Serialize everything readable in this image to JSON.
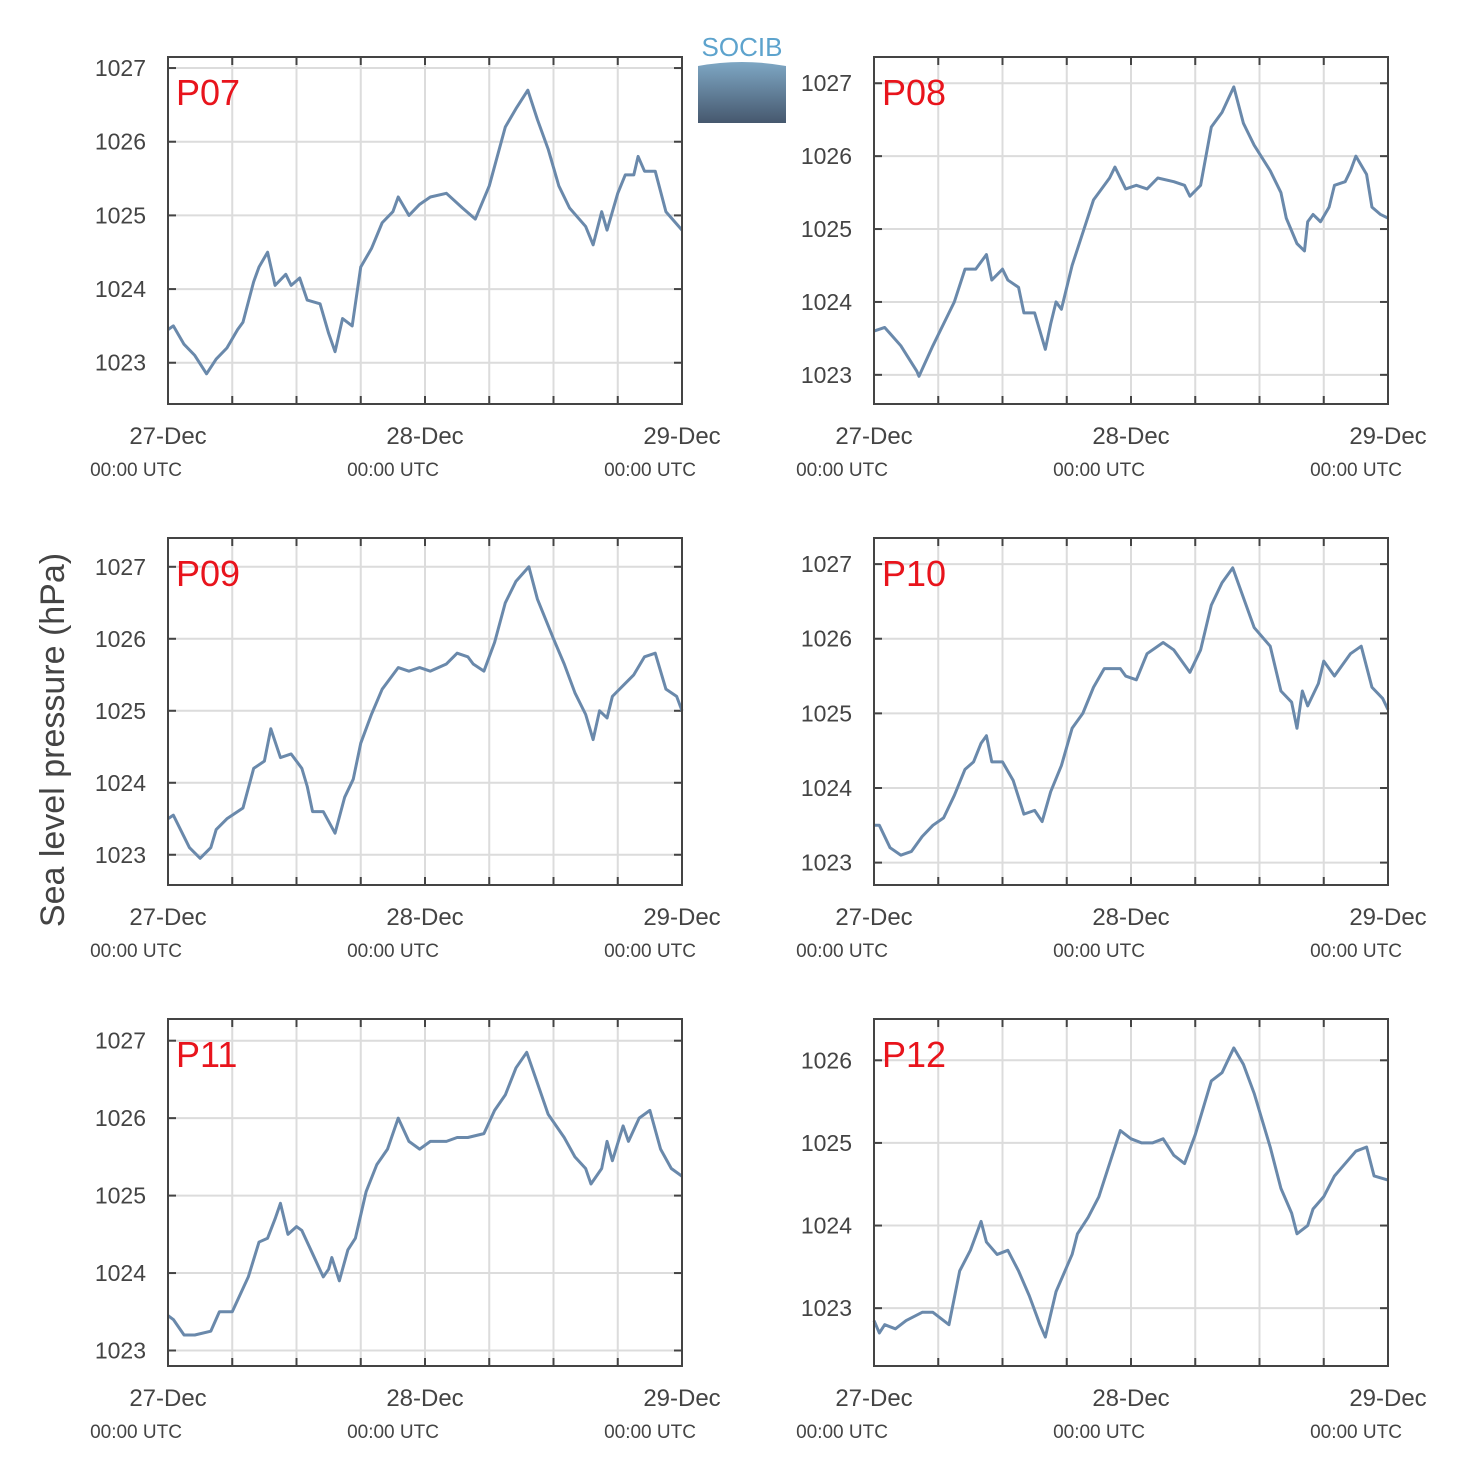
{
  "ylabel": "Sea level pressure (hPa)",
  "logo_text": "SOCIB",
  "chart_data": [
    {
      "type": "line",
      "title": "P07",
      "color": "#6a89ab",
      "grid": true,
      "xlim": [
        0,
        48
      ],
      "ylim": [
        1022.44,
        1027.15
      ],
      "yticks": [
        1023,
        1024,
        1025,
        1026,
        1027
      ],
      "xticks": [
        {
          "value": 0,
          "label": [
            "27-Dec",
            "00:00 UTC"
          ]
        },
        {
          "value": 24,
          "label": [
            "28-Dec",
            "00:00 UTC"
          ]
        },
        {
          "value": 48,
          "label": [
            "29-Dec",
            "00:00 UTC"
          ]
        }
      ],
      "xminor": [
        6,
        12,
        18,
        30,
        36,
        42
      ],
      "x": [
        0,
        0.5,
        1.5,
        2.5,
        3.6,
        4.5,
        5.5,
        6.5,
        7,
        8,
        8.5,
        9.3,
        10,
        11,
        11.5,
        12.3,
        13,
        14.2,
        15,
        15.6,
        16.3,
        17.2,
        18,
        19,
        20,
        21,
        21.5,
        22.5,
        23.5,
        24.5,
        26,
        27.5,
        28.7,
        30,
        31.5,
        32.5,
        33.6,
        34.5,
        35.5,
        36.5,
        37.5,
        39,
        39.7,
        40.5,
        41,
        42,
        42.7,
        43.5,
        43.9,
        44.5,
        45.5,
        46.5,
        48
      ],
      "values": [
        1023.45,
        1023.5,
        1023.25,
        1023.1,
        1022.85,
        1023.05,
        1023.2,
        1023.45,
        1023.55,
        1024.1,
        1024.3,
        1024.5,
        1024.05,
        1024.2,
        1024.05,
        1024.15,
        1023.85,
        1023.8,
        1023.4,
        1023.15,
        1023.6,
        1023.5,
        1024.3,
        1024.55,
        1024.9,
        1025.05,
        1025.25,
        1025.0,
        1025.15,
        1025.25,
        1025.3,
        1025.1,
        1024.95,
        1025.4,
        1026.2,
        1026.45,
        1026.7,
        1026.3,
        1025.9,
        1025.4,
        1025.1,
        1024.85,
        1024.6,
        1025.05,
        1024.8,
        1025.3,
        1025.55,
        1025.55,
        1025.8,
        1025.6,
        1025.6,
        1025.05,
        1024.8
      ]
    },
    {
      "type": "line",
      "title": "P08",
      "color": "#6a89ab",
      "grid": true,
      "xlim": [
        0,
        48
      ],
      "ylim": [
        1022.6,
        1027.36
      ],
      "yticks": [
        1023,
        1024,
        1025,
        1026,
        1027
      ],
      "xticks": [
        {
          "value": 0,
          "label": [
            "27-Dec",
            "00:00 UTC"
          ]
        },
        {
          "value": 24,
          "label": [
            "28-Dec",
            "00:00 UTC"
          ]
        },
        {
          "value": 48,
          "label": [
            "29-Dec",
            "00:00 UTC"
          ]
        }
      ],
      "xminor": [
        6,
        12,
        18,
        30,
        36,
        42
      ],
      "x": [
        0,
        1,
        2.5,
        4,
        4.2,
        5.5,
        7,
        7.5,
        8.5,
        9.5,
        10.5,
        11,
        12,
        12.5,
        13.5,
        14,
        15,
        16,
        16.5,
        17,
        17.5,
        18.5,
        19.5,
        20.5,
        21,
        22,
        22.5,
        23.5,
        24.5,
        25.5,
        26.5,
        28,
        29,
        29.5,
        30.5,
        31.5,
        32.5,
        33.6,
        34.5,
        35.5,
        37,
        38,
        38.5,
        39.5,
        40.2,
        40.5,
        41,
        41.7,
        42.5,
        43,
        44,
        44.5,
        45,
        46,
        46.5,
        47.3,
        48
      ],
      "values": [
        1023.6,
        1023.65,
        1023.4,
        1023.05,
        1022.98,
        1023.4,
        1023.85,
        1024.0,
        1024.45,
        1024.45,
        1024.65,
        1024.3,
        1024.45,
        1024.3,
        1024.2,
        1023.85,
        1023.85,
        1023.35,
        1023.7,
        1024.0,
        1023.9,
        1024.5,
        1024.95,
        1025.4,
        1025.5,
        1025.7,
        1025.85,
        1025.55,
        1025.6,
        1025.55,
        1025.7,
        1025.65,
        1025.6,
        1025.45,
        1025.6,
        1026.4,
        1026.6,
        1026.95,
        1026.45,
        1026.15,
        1025.8,
        1025.5,
        1025.15,
        1024.8,
        1024.7,
        1025.1,
        1025.2,
        1025.1,
        1025.3,
        1025.6,
        1025.65,
        1025.8,
        1026.0,
        1025.75,
        1025.3,
        1025.2,
        1025.15
      ]
    },
    {
      "type": "line",
      "title": "P09",
      "color": "#6a89ab",
      "grid": true,
      "xlim": [
        0,
        48
      ],
      "ylim": [
        1022.58,
        1027.4
      ],
      "yticks": [
        1023,
        1024,
        1025,
        1026,
        1027
      ],
      "xticks": [
        {
          "value": 0,
          "label": [
            "27-Dec",
            "00:00 UTC"
          ]
        },
        {
          "value": 24,
          "label": [
            "28-Dec",
            "00:00 UTC"
          ]
        },
        {
          "value": 48,
          "label": [
            "29-Dec",
            "00:00 UTC"
          ]
        }
      ],
      "xminor": [
        6,
        12,
        18,
        30,
        36,
        42
      ],
      "x": [
        0,
        0.5,
        2,
        3,
        4,
        4.5,
        5.5,
        7,
        8,
        9,
        9.6,
        10.5,
        11.5,
        12.5,
        13,
        13.5,
        14.5,
        15.6,
        16.5,
        17.3,
        18,
        19,
        20,
        21.5,
        22.5,
        23.5,
        24.5,
        26,
        27,
        28,
        28.5,
        29.5,
        30.5,
        31.5,
        32.5,
        33.7,
        34.5,
        36,
        37,
        38,
        39,
        39.7,
        40.3,
        41,
        41.5,
        42.5,
        43.5,
        44.5,
        45.5,
        46.5,
        47.5,
        48
      ],
      "values": [
        1023.5,
        1023.55,
        1023.1,
        1022.95,
        1023.1,
        1023.35,
        1023.5,
        1023.65,
        1024.2,
        1024.3,
        1024.75,
        1024.35,
        1024.4,
        1024.2,
        1023.95,
        1023.6,
        1023.6,
        1023.3,
        1023.8,
        1024.05,
        1024.55,
        1024.95,
        1025.3,
        1025.6,
        1025.55,
        1025.6,
        1025.55,
        1025.65,
        1025.8,
        1025.75,
        1025.65,
        1025.55,
        1025.95,
        1026.5,
        1026.8,
        1027.0,
        1026.55,
        1026.0,
        1025.65,
        1025.25,
        1024.95,
        1024.6,
        1025.0,
        1024.9,
        1025.2,
        1025.35,
        1025.5,
        1025.75,
        1025.8,
        1025.3,
        1025.2,
        1025.0
      ]
    },
    {
      "type": "line",
      "title": "P10",
      "color": "#6a89ab",
      "grid": true,
      "xlim": [
        0,
        48
      ],
      "ylim": [
        1022.7,
        1027.35
      ],
      "yticks": [
        1023,
        1024,
        1025,
        1026,
        1027
      ],
      "xticks": [
        {
          "value": 0,
          "label": [
            "27-Dec",
            "00:00 UTC"
          ]
        },
        {
          "value": 24,
          "label": [
            "28-Dec",
            "00:00 UTC"
          ]
        },
        {
          "value": 48,
          "label": [
            "29-Dec",
            "00:00 UTC"
          ]
        }
      ],
      "xminor": [
        6,
        12,
        18,
        30,
        36,
        42
      ],
      "x": [
        0,
        0.5,
        1.5,
        2.5,
        3.5,
        4.5,
        5.5,
        6.5,
        7.5,
        8.5,
        9.3,
        10,
        10.5,
        11,
        12,
        13,
        14,
        15,
        15.7,
        16.5,
        17.5,
        18.5,
        19.5,
        20.5,
        21.5,
        23,
        23.5,
        24.5,
        25.5,
        27,
        28,
        29.5,
        30.5,
        31.5,
        32.5,
        33.5,
        34.5,
        35.5,
        37,
        38,
        39,
        39.5,
        40,
        40.5,
        41.5,
        42,
        43,
        44.5,
        45.5,
        46.5,
        47.5,
        48
      ],
      "values": [
        1023.5,
        1023.5,
        1023.2,
        1023.1,
        1023.15,
        1023.35,
        1023.5,
        1023.6,
        1023.9,
        1024.25,
        1024.35,
        1024.6,
        1024.7,
        1024.35,
        1024.35,
        1024.1,
        1023.65,
        1023.7,
        1023.55,
        1023.95,
        1024.3,
        1024.8,
        1025.0,
        1025.35,
        1025.6,
        1025.6,
        1025.5,
        1025.45,
        1025.8,
        1025.95,
        1025.85,
        1025.55,
        1025.85,
        1026.45,
        1026.75,
        1026.95,
        1026.55,
        1026.15,
        1025.9,
        1025.3,
        1025.15,
        1024.8,
        1025.3,
        1025.1,
        1025.4,
        1025.7,
        1025.5,
        1025.8,
        1025.9,
        1025.35,
        1025.2,
        1025.05
      ]
    },
    {
      "type": "line",
      "title": "P11",
      "color": "#6a89ab",
      "grid": true,
      "xlim": [
        0,
        48
      ],
      "ylim": [
        1022.8,
        1027.28
      ],
      "yticks": [
        1023,
        1024,
        1025,
        1026,
        1027
      ],
      "xticks": [
        {
          "value": 0,
          "label": [
            "27-Dec",
            "00:00 UTC"
          ]
        },
        {
          "value": 24,
          "label": [
            "28-Dec",
            "00:00 UTC"
          ]
        },
        {
          "value": 48,
          "label": [
            "29-Dec",
            "00:00 UTC"
          ]
        }
      ],
      "xminor": [
        6,
        12,
        18,
        30,
        36,
        42
      ],
      "x": [
        0,
        0.5,
        1.5,
        2.5,
        4,
        4.8,
        5.5,
        6,
        7.5,
        8.5,
        9.3,
        10,
        10.5,
        11.2,
        12,
        12.5,
        13.5,
        14.5,
        15,
        15.3,
        16,
        16.8,
        17.5,
        18.5,
        19.5,
        20.5,
        21.5,
        22.5,
        23.5,
        24.5,
        26,
        27,
        28,
        29.5,
        30.5,
        31.5,
        32.5,
        33.5,
        34.5,
        35.5,
        37,
        38,
        39,
        39.5,
        40.5,
        41,
        41.5,
        42.5,
        43,
        44,
        45,
        46,
        47,
        48
      ],
      "values": [
        1023.45,
        1023.4,
        1023.2,
        1023.2,
        1023.25,
        1023.5,
        1023.5,
        1023.5,
        1023.95,
        1024.4,
        1024.45,
        1024.7,
        1024.9,
        1024.5,
        1024.6,
        1024.55,
        1024.25,
        1023.95,
        1024.05,
        1024.2,
        1023.9,
        1024.3,
        1024.45,
        1025.05,
        1025.4,
        1025.6,
        1026.0,
        1025.7,
        1025.6,
        1025.7,
        1025.7,
        1025.75,
        1025.75,
        1025.8,
        1026.1,
        1026.3,
        1026.65,
        1026.85,
        1026.45,
        1026.05,
        1025.75,
        1025.5,
        1025.35,
        1025.15,
        1025.35,
        1025.7,
        1025.45,
        1025.9,
        1025.7,
        1026.0,
        1026.1,
        1025.6,
        1025.35,
        1025.25
      ]
    },
    {
      "type": "line",
      "title": "P12",
      "color": "#6a89ab",
      "grid": true,
      "xlim": [
        0,
        48
      ],
      "ylim": [
        1022.3,
        1026.5
      ],
      "yticks": [
        1023,
        1024,
        1025,
        1026
      ],
      "xticks": [
        {
          "value": 0,
          "label": [
            "27-Dec",
            "00:00 UTC"
          ]
        },
        {
          "value": 24,
          "label": [
            "28-Dec",
            "00:00 UTC"
          ]
        },
        {
          "value": 48,
          "label": [
            "29-Dec",
            "00:00 UTC"
          ]
        }
      ],
      "xminor": [
        6,
        12,
        18,
        30,
        36,
        42
      ],
      "x": [
        0,
        0.5,
        1,
        2,
        3,
        4.5,
        5.5,
        6.5,
        7,
        8,
        9,
        10,
        10.5,
        11.5,
        12.5,
        13.5,
        14.5,
        15.5,
        16,
        17,
        18.5,
        19,
        20,
        21,
        22,
        23,
        24,
        25,
        26,
        27,
        28,
        29,
        30,
        31.5,
        32.5,
        33.6,
        34.5,
        35.5,
        37,
        38,
        39,
        39.5,
        40.5,
        41,
        42,
        43,
        44,
        45,
        46,
        46.7,
        48
      ],
      "values": [
        1022.85,
        1022.7,
        1022.8,
        1022.75,
        1022.85,
        1022.95,
        1022.95,
        1022.85,
        1022.8,
        1023.45,
        1023.7,
        1024.05,
        1023.8,
        1023.65,
        1023.7,
        1023.45,
        1023.15,
        1022.8,
        1022.65,
        1023.2,
        1023.65,
        1023.9,
        1024.1,
        1024.35,
        1024.75,
        1025.15,
        1025.05,
        1025.0,
        1025.0,
        1025.05,
        1024.85,
        1024.75,
        1025.1,
        1025.75,
        1025.85,
        1026.15,
        1025.95,
        1025.6,
        1024.95,
        1024.45,
        1024.15,
        1023.9,
        1024.0,
        1024.2,
        1024.35,
        1024.6,
        1024.75,
        1024.9,
        1024.95,
        1024.6,
        1024.55
      ]
    }
  ]
}
